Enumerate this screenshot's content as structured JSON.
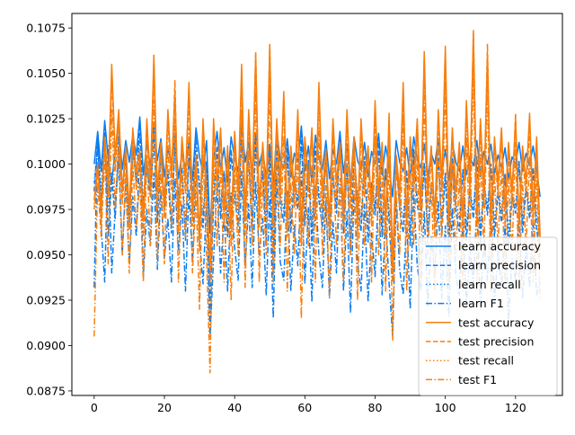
{
  "chart_data": {
    "type": "line",
    "title": "",
    "xlabel": "",
    "ylabel": "",
    "xlim": [
      -6.35,
      133.35
    ],
    "ylim": [
      0.08725,
      0.1083
    ],
    "xticks": [
      0,
      20,
      40,
      60,
      80,
      100,
      120
    ],
    "yticks": [
      0.0875,
      0.09,
      0.0925,
      0.095,
      0.0975,
      0.1,
      0.1025,
      0.105,
      0.1075
    ],
    "ytick_labels": [
      "0.0875",
      "0.0900",
      "0.0925",
      "0.0950",
      "0.0975",
      "0.1000",
      "0.1025",
      "0.1050",
      "0.1075"
    ],
    "grid": false,
    "legend_position": "lower-right",
    "series": [
      {
        "name": "learn accuracy",
        "color": "#0b7cf0",
        "dash": "solid",
        "values": [
          0.1,
          0.1018,
          0.0996,
          0.1024,
          0.1003,
          0.099,
          0.1008,
          0.1021,
          0.0997,
          0.1013,
          0.1001,
          0.1016,
          0.1005,
          0.1026,
          0.0994,
          0.1011,
          0.0999,
          0.1022,
          0.1002,
          0.1014,
          0.0993,
          0.1009,
          0.1,
          0.1017,
          0.0992,
          0.1006,
          0.0998,
          0.1012,
          0.0991,
          0.102,
          0.1004,
          0.0995,
          0.1013,
          0.0962,
          0.1002,
          0.1018,
          0.0997,
          0.1009,
          0.099,
          0.1015,
          0.1003,
          0.0996,
          0.1023,
          0.1001,
          0.1012,
          0.0994,
          0.1017,
          0.0999,
          0.1008,
          0.0992,
          0.1011,
          0.0987,
          0.1019,
          0.1002,
          0.0998,
          0.1014,
          0.0993,
          0.1006,
          0.1001,
          0.1021,
          0.0996,
          0.101,
          0.099,
          0.1016,
          0.1003,
          0.0997,
          0.1013,
          0.0992,
          0.1008,
          0.1,
          0.1018,
          0.0995,
          0.1011,
          0.0989,
          0.1015,
          0.1002,
          0.0997,
          0.1012,
          0.0993,
          0.1007,
          0.1,
          0.1017,
          0.0994,
          0.101,
          0.0998,
          0.0982,
          0.1013,
          0.1001,
          0.0996,
          0.1009,
          0.0992,
          0.1015,
          0.1003,
          0.0998,
          0.1011,
          0.0993,
          0.1006,
          0.1,
          0.1014,
          0.0995,
          0.1008,
          0.0991,
          0.1012,
          0.1001,
          0.0996,
          0.101,
          0.0994,
          0.1004,
          0.0999,
          0.1013,
          0.0993,
          0.1007,
          0.1,
          0.1011,
          0.0995,
          0.1005,
          0.0998,
          0.1009,
          0.0992,
          0.1004,
          0.1,
          0.1012,
          0.0996,
          0.1006,
          0.0999,
          0.101,
          0.0997,
          0.0982
        ]
      },
      {
        "name": "learn precision",
        "color": "#0b7cf0",
        "dash": "dashed",
        "values": [
          0.0985,
          0.1012,
          0.0978,
          0.102,
          0.096,
          0.0992,
          0.097,
          0.1015,
          0.0985,
          0.1005,
          0.0965,
          0.101,
          0.099,
          0.1022,
          0.0972,
          0.1,
          0.0982,
          0.1017,
          0.0968,
          0.1008,
          0.0975,
          0.0995,
          0.0962,
          0.1012,
          0.098,
          0.0998,
          0.0958,
          0.1006,
          0.0977,
          0.1015,
          0.0985,
          0.0965,
          0.1002,
          0.0918,
          0.0978,
          0.101,
          0.097,
          0.0995,
          0.096,
          0.1008,
          0.0982,
          0.0966,
          0.1018,
          0.0975,
          0.1004,
          0.0963,
          0.1012,
          0.098,
          0.0996,
          0.0958,
          0.1006,
          0.094,
          0.1014,
          0.0978,
          0.0968,
          0.1009,
          0.0962,
          0.0992,
          0.0975,
          0.1016,
          0.0966,
          0.1002,
          0.0955,
          0.101,
          0.098,
          0.0965,
          0.1006,
          0.0958,
          0.0994,
          0.0973,
          0.1014,
          0.0962,
          0.1,
          0.095,
          0.1008,
          0.0978,
          0.0963,
          0.1004,
          0.0957,
          0.099,
          0.0972,
          0.1012,
          0.096,
          0.0998,
          0.0968,
          0.0935,
          0.1005,
          0.0975,
          0.0962,
          0.0997,
          0.0955,
          0.1008,
          0.0978,
          0.0966,
          0.1001,
          0.0958,
          0.0988,
          0.0972,
          0.1006,
          0.0962,
          0.0995,
          0.0952,
          0.1003,
          0.0974,
          0.0963,
          0.0997,
          0.0958,
          0.0985,
          0.097,
          0.1004,
          0.0956,
          0.099,
          0.0972,
          0.1,
          0.096,
          0.0984,
          0.0968,
          0.0995,
          0.0953,
          0.0982,
          0.0973,
          0.1002,
          0.0962,
          0.0987,
          0.097,
          0.0998,
          0.0964,
          0.095
        ]
      },
      {
        "name": "learn recall",
        "color": "#0b7cf0",
        "dash": "dotted",
        "values": [
          0.099,
          0.101,
          0.0985,
          0.1012,
          0.0975,
          0.0995,
          0.098,
          0.1008,
          0.0988,
          0.1002,
          0.0972,
          0.1006,
          0.0992,
          0.1015,
          0.0978,
          0.1,
          0.0986,
          0.101,
          0.0974,
          0.1004,
          0.098,
          0.0996,
          0.097,
          0.1008,
          0.0984,
          0.0998,
          0.0968,
          0.1003,
          0.0982,
          0.101,
          0.099,
          0.0972,
          0.1001,
          0.094,
          0.0985,
          0.1006,
          0.0976,
          0.0996,
          0.097,
          0.1004,
          0.0987,
          0.0973,
          0.1012,
          0.098,
          0.1,
          0.0971,
          0.1007,
          0.0985,
          0.0996,
          0.0968,
          0.1003,
          0.0955,
          0.1008,
          0.0984,
          0.0974,
          0.1004,
          0.097,
          0.0993,
          0.098,
          0.101,
          0.0973,
          0.1,
          0.0965,
          0.1006,
          0.0985,
          0.0972,
          0.1002,
          0.0968,
          0.0993,
          0.0978,
          0.1008,
          0.097,
          0.0998,
          0.0962,
          0.1004,
          0.0982,
          0.097,
          0.1,
          0.0966,
          0.099,
          0.0977,
          0.1006,
          0.0968,
          0.0996,
          0.0974,
          0.095,
          0.1001,
          0.098,
          0.097,
          0.0995,
          0.0964,
          0.1004,
          0.0982,
          0.0972,
          0.0998,
          0.0966,
          0.0989,
          0.0977,
          0.1002,
          0.097,
          0.0994,
          0.0962,
          0.1,
          0.0978,
          0.097,
          0.0995,
          0.0966,
          0.0986,
          0.0975,
          0.1,
          0.0964,
          0.099,
          0.0977,
          0.0998,
          0.0968,
          0.0986,
          0.0974,
          0.0994,
          0.0962,
          0.0984,
          0.0977,
          0.0999,
          0.0969,
          0.0988,
          0.0975,
          0.0996,
          0.0971,
          0.0962
        ]
      },
      {
        "name": "learn F1",
        "color": "#0b7cf0",
        "dash": "dashdot",
        "values": [
          0.0932,
          0.1017,
          0.0965,
          0.0935,
          0.101,
          0.094,
          0.0975,
          0.1002,
          0.095,
          0.099,
          0.0945,
          0.0982,
          0.096,
          0.1008,
          0.0938,
          0.0975,
          0.0955,
          0.0995,
          0.0942,
          0.0985,
          0.0948,
          0.097,
          0.0935,
          0.0992,
          0.0952,
          0.0978,
          0.093,
          0.0986,
          0.0946,
          0.0998,
          0.0958,
          0.0934,
          0.098,
          0.0905,
          0.0948,
          0.099,
          0.094,
          0.0972,
          0.093,
          0.0984,
          0.0954,
          0.0936,
          0.0996,
          0.0944,
          0.0978,
          0.0932,
          0.099,
          0.095,
          0.097,
          0.0928,
          0.0982,
          0.0915,
          0.0994,
          0.0946,
          0.0936,
          0.0985,
          0.093,
          0.0966,
          0.0944,
          0.0996,
          0.0934,
          0.0976,
          0.0924,
          0.0988,
          0.095,
          0.0932,
          0.098,
          0.0926,
          0.0968,
          0.094,
          0.0992,
          0.093,
          0.0974,
          0.0918,
          0.0984,
          0.0946,
          0.093,
          0.0978,
          0.0924,
          0.0962,
          0.0938,
          0.099,
          0.0928,
          0.097,
          0.0934,
          0.0905,
          0.098,
          0.0942,
          0.0928,
          0.097,
          0.092,
          0.0984,
          0.0944,
          0.093,
          0.0974,
          0.0922,
          0.096,
          0.0938,
          0.098,
          0.0926,
          0.0966,
          0.0916,
          0.0976,
          0.0938,
          0.0928,
          0.0968,
          0.0922,
          0.0954,
          0.0934,
          0.0978,
          0.092,
          0.096,
          0.0936,
          0.0972,
          0.0924,
          0.0952,
          0.0932,
          0.0966,
          0.0914,
          0.0948,
          0.0936,
          0.0975,
          0.0926,
          0.0955,
          0.0932,
          0.097,
          0.0928,
          0.0935
        ]
      },
      {
        "name": "test accuracy",
        "color": "#f77f0e",
        "dash": "solid",
        "values": [
          0.098,
          0.1,
          0.0975,
          0.1015,
          0.099,
          0.1055,
          0.1005,
          0.103,
          0.0985,
          0.101,
          0.0975,
          0.102,
          0.0995,
          0.1008,
          0.097,
          0.1025,
          0.099,
          0.106,
          0.0985,
          0.1012,
          0.0978,
          0.103,
          0.0995,
          0.104,
          0.097,
          0.1015,
          0.0992,
          0.1045,
          0.0975,
          0.1005,
          0.096,
          0.1025,
          0.0985,
          0.0945,
          0.1025,
          0.099,
          0.102,
          0.0975,
          0.101,
          0.0965,
          0.1018,
          0.0985,
          0.1055,
          0.097,
          0.103,
          0.099,
          0.106,
          0.0975,
          0.1012,
          0.0985,
          0.1065,
          0.0975,
          0.1025,
          0.099,
          0.104,
          0.097,
          0.101,
          0.0985,
          0.103,
          0.0965,
          0.1015,
          0.099,
          0.102,
          0.0975,
          0.1045,
          0.0985,
          0.1008,
          0.097,
          0.1025,
          0.099,
          0.1012,
          0.0975,
          0.103,
          0.0985,
          0.1015,
          0.0968,
          0.1025,
          0.099,
          0.101,
          0.0975,
          0.1035,
          0.0985,
          0.1012,
          0.097,
          0.1028,
          0.0945,
          0.1005,
          0.0985,
          0.1045,
          0.097,
          0.1015,
          0.099,
          0.1025,
          0.0975,
          0.1062,
          0.0985,
          0.101,
          0.097,
          0.103,
          0.099,
          0.1065,
          0.0975,
          0.102,
          0.0985,
          0.1012,
          0.097,
          0.1035,
          0.099,
          0.1072,
          0.0975,
          0.1025,
          0.0985,
          0.106,
          0.097,
          0.1015,
          0.099,
          0.102,
          0.0975,
          0.1012,
          0.0985,
          0.1025,
          0.097,
          0.101,
          0.099,
          0.1028,
          0.0975,
          0.1015,
          0.096
        ]
      },
      {
        "name": "test precision",
        "color": "#f77f0e",
        "dash": "dashed",
        "values": [
          0.0975,
          0.0998,
          0.0968,
          0.1012,
          0.0982,
          0.105,
          0.0996,
          0.1025,
          0.0978,
          0.1004,
          0.0964,
          0.1016,
          0.0986,
          0.1002,
          0.096,
          0.102,
          0.0982,
          0.1056,
          0.0975,
          0.1008,
          0.097,
          0.1026,
          0.0986,
          0.1046,
          0.0962,
          0.101,
          0.0984,
          0.104,
          0.0966,
          0.0998,
          0.0952,
          0.102,
          0.0976,
          0.0935,
          0.102,
          0.0982,
          0.1015,
          0.0966,
          0.1004,
          0.0955,
          0.1012,
          0.0976,
          0.105,
          0.096,
          0.1025,
          0.098,
          0.1062,
          0.0965,
          0.1006,
          0.0975,
          0.1066,
          0.0965,
          0.102,
          0.098,
          0.1036,
          0.096,
          0.1004,
          0.0976,
          0.1025,
          0.0955,
          0.101,
          0.0982,
          0.1015,
          0.0966,
          0.104,
          0.0976,
          0.1002,
          0.096,
          0.102,
          0.0982,
          0.1006,
          0.0966,
          0.1025,
          0.0976,
          0.101,
          0.0958,
          0.102,
          0.0982,
          0.1004,
          0.0966,
          0.103,
          0.0976,
          0.1006,
          0.096,
          0.1022,
          0.0935,
          0.0998,
          0.0976,
          0.104,
          0.096,
          0.101,
          0.0982,
          0.102,
          0.0966,
          0.1058,
          0.0976,
          0.1004,
          0.096,
          0.1025,
          0.0982,
          0.106,
          0.0966,
          0.1015,
          0.0976,
          0.1006,
          0.096,
          0.103,
          0.0982,
          0.1074,
          0.0966,
          0.102,
          0.0976,
          0.1066,
          0.096,
          0.101,
          0.0982,
          0.1015,
          0.0966,
          0.1006,
          0.0976,
          0.1028,
          0.096,
          0.1004,
          0.0982,
          0.1022,
          0.0966,
          0.101,
          0.094
        ]
      },
      {
        "name": "test recall",
        "color": "#f77f0e",
        "dash": "dotted",
        "values": [
          0.0978,
          0.0996,
          0.0972,
          0.101,
          0.0986,
          0.1046,
          0.1,
          0.1022,
          0.0982,
          0.1006,
          0.097,
          0.1014,
          0.099,
          0.1004,
          0.0966,
          0.1018,
          0.0986,
          0.105,
          0.098,
          0.1008,
          0.0974,
          0.1022,
          0.099,
          0.1038,
          0.0968,
          0.101,
          0.0988,
          0.1036,
          0.097,
          0.1,
          0.0958,
          0.1018,
          0.098,
          0.0942,
          0.1018,
          0.0986,
          0.1014,
          0.097,
          0.1006,
          0.0962,
          0.1012,
          0.098,
          0.1046,
          0.0966,
          0.1022,
          0.0985,
          0.1054,
          0.097,
          0.1008,
          0.098,
          0.1058,
          0.097,
          0.1018,
          0.0985,
          0.1032,
          0.0966,
          0.1006,
          0.098,
          0.1022,
          0.0962,
          0.101,
          0.0986,
          0.1014,
          0.097,
          0.1036,
          0.098,
          0.1004,
          0.0966,
          0.1018,
          0.0986,
          0.1008,
          0.097,
          0.1022,
          0.098,
          0.101,
          0.0964,
          0.1018,
          0.0986,
          0.1006,
          0.097,
          0.1026,
          0.098,
          0.1008,
          0.0966,
          0.102,
          0.0942,
          0.1,
          0.098,
          0.1036,
          0.0966,
          0.101,
          0.0986,
          0.1018,
          0.097,
          0.1052,
          0.098,
          0.1006,
          0.0966,
          0.1022,
          0.0986,
          0.1054,
          0.097,
          0.1014,
          0.098,
          0.1008,
          0.0966,
          0.1026,
          0.0986,
          0.1064,
          0.097,
          0.1018,
          0.098,
          0.1056,
          0.0966,
          0.101,
          0.0986,
          0.1014,
          0.097,
          0.1008,
          0.098,
          0.1024,
          0.0966,
          0.1006,
          0.0986,
          0.102,
          0.097,
          0.101,
          0.095
        ]
      },
      {
        "name": "test F1",
        "color": "#f77f0e",
        "dash": "dashdot",
        "values": [
          0.0905,
          0.099,
          0.096,
          0.1005,
          0.0945,
          0.103,
          0.0975,
          0.101,
          0.095,
          0.0995,
          0.094,
          0.1,
          0.0965,
          0.099,
          0.0935,
          0.1005,
          0.0955,
          0.1035,
          0.0948,
          0.0995,
          0.0945,
          0.101,
          0.0965,
          0.1025,
          0.0935,
          0.0995,
          0.096,
          0.102,
          0.094,
          0.0985,
          0.092,
          0.1005,
          0.095,
          0.0885,
          0.1005,
          0.0955,
          0.1,
          0.0935,
          0.099,
          0.0925,
          0.0998,
          0.095,
          0.103,
          0.0932,
          0.1008,
          0.0955,
          0.104,
          0.0935,
          0.099,
          0.095,
          0.1045,
          0.0935,
          0.1002,
          0.0955,
          0.1015,
          0.093,
          0.099,
          0.095,
          0.1008,
          0.0915,
          0.0995,
          0.0955,
          0.1,
          0.0935,
          0.102,
          0.095,
          0.0988,
          0.0928,
          0.1002,
          0.0955,
          0.0992,
          0.0935,
          0.101,
          0.095,
          0.0995,
          0.0925,
          0.1002,
          0.0955,
          0.099,
          0.0935,
          0.1015,
          0.095,
          0.0992,
          0.093,
          0.1005,
          0.0903,
          0.0985,
          0.095,
          0.1025,
          0.093,
          0.0995,
          0.0955,
          0.1005,
          0.0935,
          0.104,
          0.095,
          0.099,
          0.093,
          0.101,
          0.0955,
          0.1045,
          0.0935,
          0.1,
          0.095,
          0.0992,
          0.093,
          0.1015,
          0.0955,
          0.1055,
          0.0935,
          0.1005,
          0.095,
          0.1045,
          0.093,
          0.0995,
          0.0955,
          0.1,
          0.0935,
          0.0992,
          0.095,
          0.1012,
          0.093,
          0.099,
          0.0955,
          0.1005,
          0.0935,
          0.0995,
          0.0925
        ]
      }
    ]
  }
}
